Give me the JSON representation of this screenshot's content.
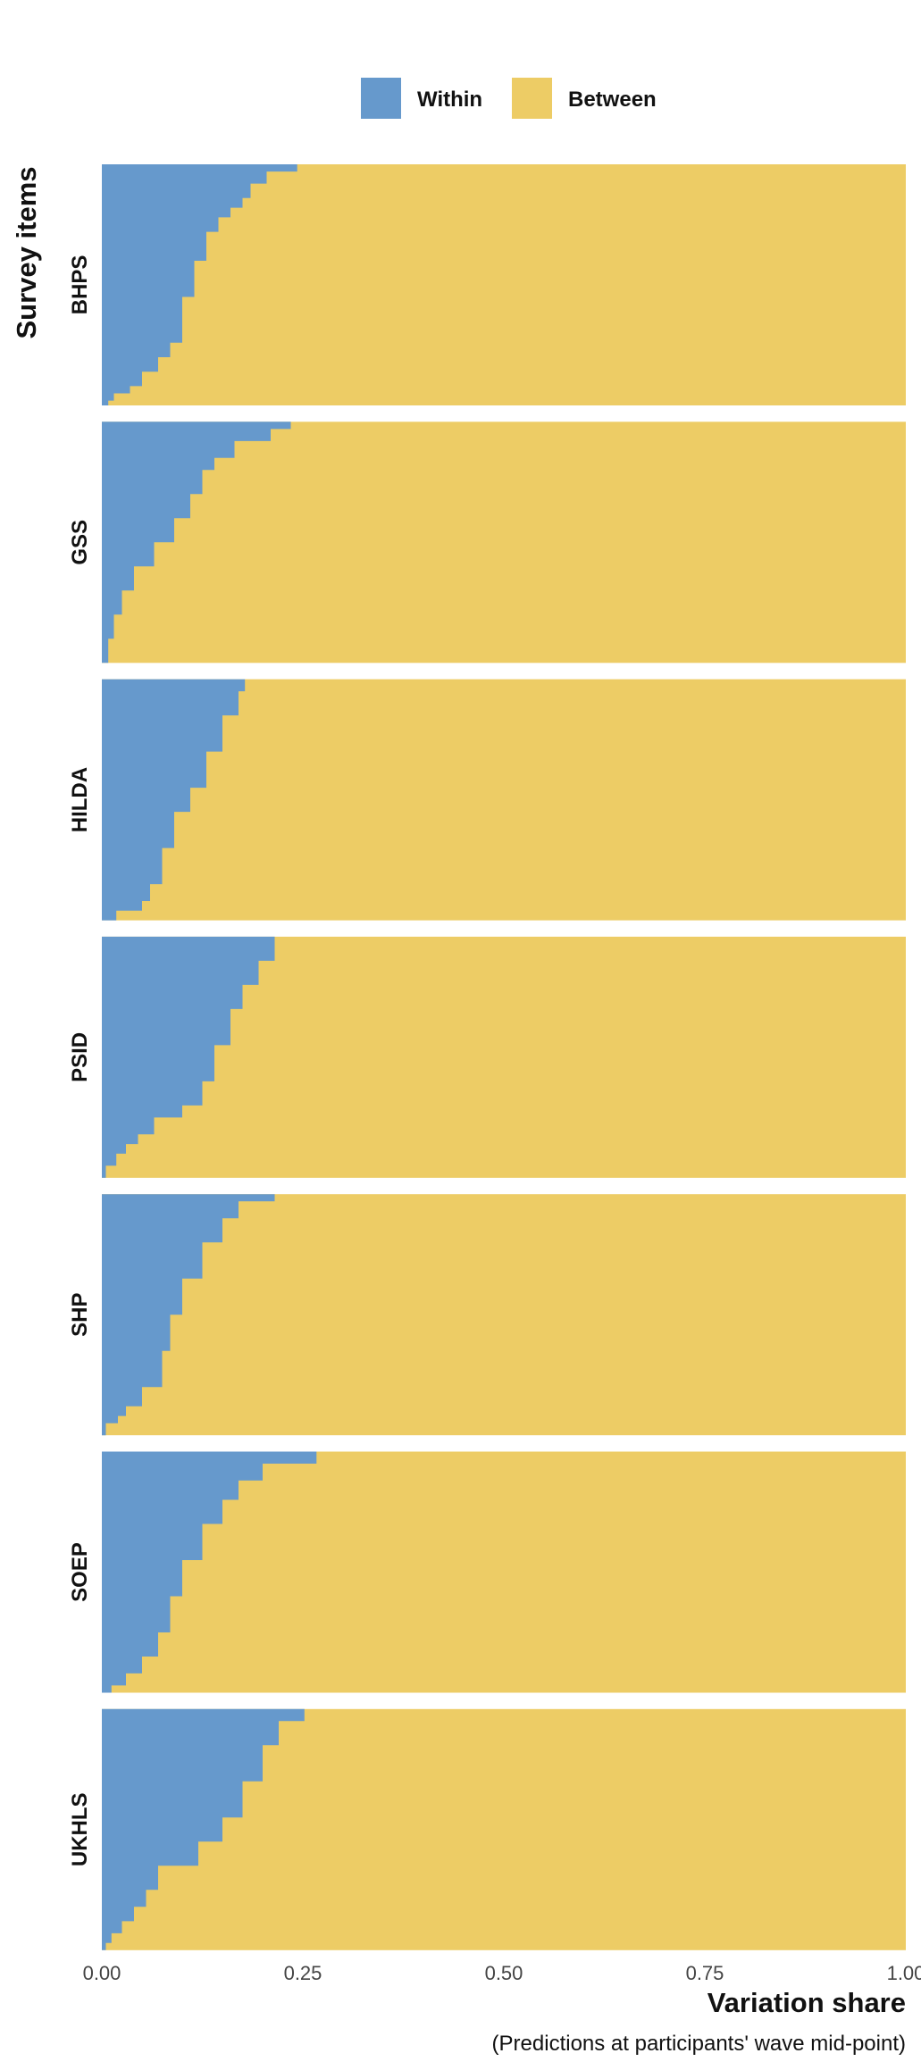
{
  "chart_data": {
    "type": "area",
    "description_orientation": "horizontal stacked share per survey item, items sorted by within share",
    "xlabel": "Variation share",
    "ylabel": "Survey items",
    "caption": "(Predictions at participants' wave mid-point)",
    "xlim": [
      0,
      1
    ],
    "x_ticks": [
      "0.00",
      "0.25",
      "0.50",
      "0.75",
      "1.00"
    ],
    "x_tick_values": [
      0,
      0.25,
      0.5,
      0.75,
      1.0
    ],
    "grid": false,
    "legend_position": "top",
    "legend": [
      {
        "name": "Within",
        "color": "#6699CC"
      },
      {
        "name": "Between",
        "color": "#EDCC65"
      }
    ],
    "facets": [
      {
        "label": "BHPS",
        "within_share_by_item_rank": [
          [
            0,
            0.243
          ],
          [
            0.03,
            0.205
          ],
          [
            0.08,
            0.185
          ],
          [
            0.14,
            0.175
          ],
          [
            0.18,
            0.16
          ],
          [
            0.22,
            0.145
          ],
          [
            0.28,
            0.13
          ],
          [
            0.4,
            0.115
          ],
          [
            0.55,
            0.1
          ],
          [
            0.74,
            0.085
          ],
          [
            0.8,
            0.07
          ],
          [
            0.86,
            0.05
          ],
          [
            0.92,
            0.035
          ],
          [
            0.95,
            0.015
          ],
          [
            0.98,
            0.008
          ],
          [
            1,
            0.003
          ]
        ]
      },
      {
        "label": "GSS",
        "within_share_by_item_rank": [
          [
            0,
            0.235
          ],
          [
            0.03,
            0.21
          ],
          [
            0.08,
            0.165
          ],
          [
            0.15,
            0.14
          ],
          [
            0.2,
            0.125
          ],
          [
            0.3,
            0.11
          ],
          [
            0.4,
            0.09
          ],
          [
            0.5,
            0.065
          ],
          [
            0.6,
            0.04
          ],
          [
            0.7,
            0.025
          ],
          [
            0.8,
            0.015
          ],
          [
            0.9,
            0.008
          ],
          [
            1,
            0.002
          ]
        ]
      },
      {
        "label": "HILDA",
        "within_share_by_item_rank": [
          [
            0,
            0.178
          ],
          [
            0.05,
            0.17
          ],
          [
            0.15,
            0.15
          ],
          [
            0.3,
            0.13
          ],
          [
            0.45,
            0.11
          ],
          [
            0.55,
            0.09
          ],
          [
            0.7,
            0.075
          ],
          [
            0.85,
            0.06
          ],
          [
            0.92,
            0.05
          ],
          [
            0.96,
            0.018
          ],
          [
            1,
            0.0
          ]
        ]
      },
      {
        "label": "PSID",
        "within_share_by_item_rank": [
          [
            0,
            0.215
          ],
          [
            0.1,
            0.195
          ],
          [
            0.2,
            0.175
          ],
          [
            0.3,
            0.16
          ],
          [
            0.45,
            0.14
          ],
          [
            0.6,
            0.125
          ],
          [
            0.7,
            0.1
          ],
          [
            0.75,
            0.065
          ],
          [
            0.82,
            0.045
          ],
          [
            0.86,
            0.03
          ],
          [
            0.9,
            0.018
          ],
          [
            0.95,
            0.005
          ],
          [
            1,
            0.0
          ]
        ]
      },
      {
        "label": "SHP",
        "within_share_by_item_rank": [
          [
            0,
            0.215
          ],
          [
            0.03,
            0.17
          ],
          [
            0.1,
            0.15
          ],
          [
            0.2,
            0.125
          ],
          [
            0.35,
            0.1
          ],
          [
            0.5,
            0.085
          ],
          [
            0.65,
            0.075
          ],
          [
            0.8,
            0.05
          ],
          [
            0.88,
            0.03
          ],
          [
            0.92,
            0.02
          ],
          [
            0.95,
            0.005
          ],
          [
            1,
            0.0
          ]
        ]
      },
      {
        "label": "SOEP",
        "within_share_by_item_rank": [
          [
            0,
            0.267
          ],
          [
            0.05,
            0.2
          ],
          [
            0.12,
            0.17
          ],
          [
            0.2,
            0.15
          ],
          [
            0.3,
            0.125
          ],
          [
            0.45,
            0.1
          ],
          [
            0.6,
            0.085
          ],
          [
            0.75,
            0.07
          ],
          [
            0.85,
            0.05
          ],
          [
            0.92,
            0.03
          ],
          [
            0.97,
            0.012
          ],
          [
            1,
            0.0
          ]
        ]
      },
      {
        "label": "UKHLS",
        "within_share_by_item_rank": [
          [
            0,
            0.252
          ],
          [
            0.05,
            0.22
          ],
          [
            0.15,
            0.2
          ],
          [
            0.3,
            0.175
          ],
          [
            0.45,
            0.15
          ],
          [
            0.55,
            0.12
          ],
          [
            0.65,
            0.07
          ],
          [
            0.75,
            0.055
          ],
          [
            0.82,
            0.04
          ],
          [
            0.88,
            0.025
          ],
          [
            0.93,
            0.012
          ],
          [
            0.97,
            0.005
          ],
          [
            1,
            0.0
          ]
        ]
      }
    ]
  }
}
